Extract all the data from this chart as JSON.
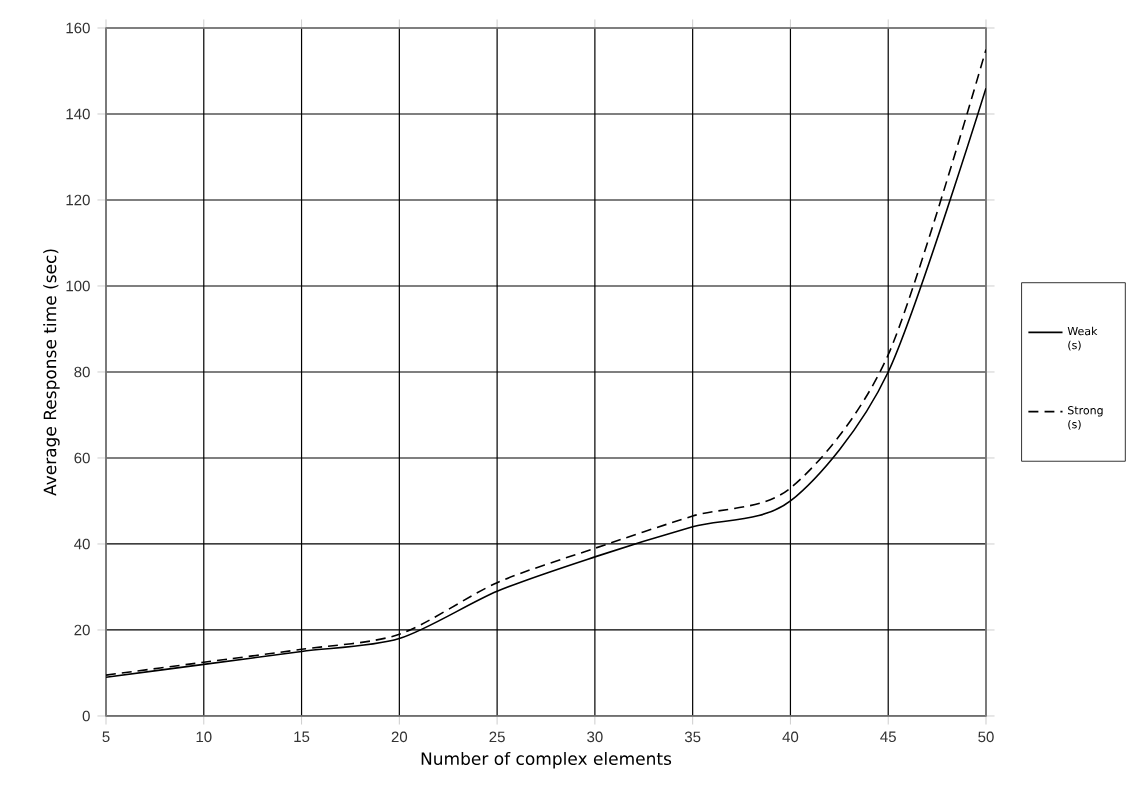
{
  "chart_data": {
    "type": "line",
    "xlabel": "Number of complex elements",
    "ylabel": "Average Response time (sec)",
    "x": [
      5,
      10,
      15,
      20,
      25,
      30,
      35,
      40,
      45,
      50
    ],
    "series": [
      {
        "name": "Weak (s)",
        "color": "#000000",
        "line_style": "solid",
        "values": [
          9,
          12,
          15,
          18,
          29,
          37,
          44,
          50,
          80,
          146
        ]
      },
      {
        "name": "Strong (s)",
        "color": "#000000",
        "line_style": "dashed",
        "values": [
          9.5,
          12.5,
          15.5,
          19,
          31,
          39,
          46.5,
          53,
          84,
          155
        ]
      }
    ],
    "xlim": [
      5,
      50
    ],
    "xticks": [
      5,
      10,
      15,
      20,
      25,
      30,
      35,
      40,
      45,
      50
    ],
    "ylim": [
      0,
      160
    ],
    "yticks": [
      0,
      20,
      40,
      60,
      80,
      100,
      120,
      140,
      160
    ],
    "grid": true,
    "legend": "right",
    "marker": "none"
  }
}
